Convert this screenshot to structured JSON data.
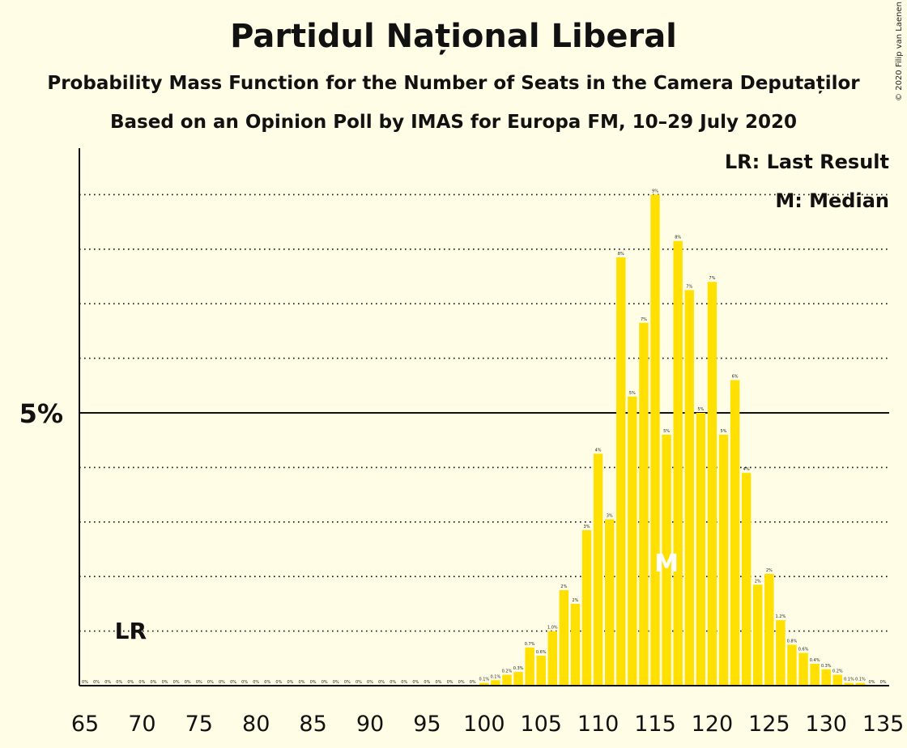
{
  "title": "Partidul Național Liberal",
  "subtitle": "Probability Mass Function for the Number of Seats in the Camera Deputaților",
  "subtitle2": "Based on an Opinion Poll by IMAS for Europa FM, 10–29 July 2020",
  "copyright": "© 2020 Filip van Laenen",
  "legend": {
    "last_result": "LR: Last Result",
    "median": "M: Median"
  },
  "colors": {
    "bar": "#FFE000",
    "background": "#FFFDE6",
    "text": "#111111",
    "median_marker": "#FFFFFF"
  },
  "chart_data": {
    "type": "bar",
    "x": [
      65,
      66,
      67,
      68,
      69,
      70,
      71,
      72,
      73,
      74,
      75,
      76,
      77,
      78,
      79,
      80,
      81,
      82,
      83,
      84,
      85,
      86,
      87,
      88,
      89,
      90,
      91,
      92,
      93,
      94,
      95,
      96,
      97,
      98,
      99,
      100,
      101,
      102,
      103,
      104,
      105,
      106,
      107,
      108,
      109,
      110,
      111,
      112,
      113,
      114,
      115,
      116,
      117,
      118,
      119,
      120,
      121,
      122,
      123,
      124,
      125,
      126,
      127,
      128,
      129,
      130,
      131,
      132,
      133,
      134,
      135
    ],
    "values": [
      0,
      0,
      0,
      0,
      0,
      0,
      0,
      0,
      0,
      0,
      0,
      0,
      0,
      0,
      0,
      0,
      0,
      0,
      0,
      0,
      0,
      0,
      0,
      0,
      0,
      0,
      0,
      0,
      0,
      0,
      0,
      0,
      0,
      0,
      0,
      0.05,
      0.1,
      0.2,
      0.25,
      0.7,
      0.55,
      1.0,
      1.75,
      1.5,
      2.85,
      4.25,
      3.05,
      7.85,
      5.3,
      6.65,
      9.0,
      4.6,
      8.15,
      7.25,
      5.0,
      7.4,
      4.6,
      5.6,
      3.9,
      1.85,
      2.05,
      1.2,
      0.75,
      0.6,
      0.4,
      0.3,
      0.2,
      0.05,
      0.05,
      0,
      0
    ],
    "labels": [
      "0%",
      "0%",
      "0%",
      "0%",
      "0%",
      "0%",
      "0%",
      "0%",
      "0%",
      "0%",
      "0%",
      "0%",
      "0%",
      "0%",
      "0%",
      "0%",
      "0%",
      "0%",
      "0%",
      "0%",
      "0%",
      "0%",
      "0%",
      "0%",
      "0%",
      "0%",
      "0%",
      "0%",
      "0%",
      "0%",
      "0%",
      "0%",
      "0%",
      "0%",
      "0%",
      "0.1%",
      "0.1%",
      "0.2%",
      "0.3%",
      "0.7%",
      "0.6%",
      "1.0%",
      "2%",
      "2%",
      "3%",
      "4%",
      "3%",
      "8%",
      "5%",
      "7%",
      "9%",
      "5%",
      "8%",
      "7%",
      "5%",
      "7%",
      "5%",
      "6%",
      "4%",
      "2%",
      "2%",
      "1.2%",
      "0.8%",
      "0.6%",
      "0.4%",
      "0.3%",
      "0.2%",
      "0.1%",
      "0.1%",
      "0%",
      "0%"
    ],
    "x_ticks": [
      "65",
      "70",
      "75",
      "80",
      "85",
      "90",
      "95",
      "100",
      "105",
      "110",
      "115",
      "120",
      "125",
      "130",
      "135"
    ],
    "y_tick_label": "5%",
    "ylim": [
      0,
      9.8
    ],
    "last_result_seat": 69,
    "last_result_label": "LR",
    "median_seat": 116,
    "median_label": "M",
    "grid": "dotted every 1%"
  }
}
